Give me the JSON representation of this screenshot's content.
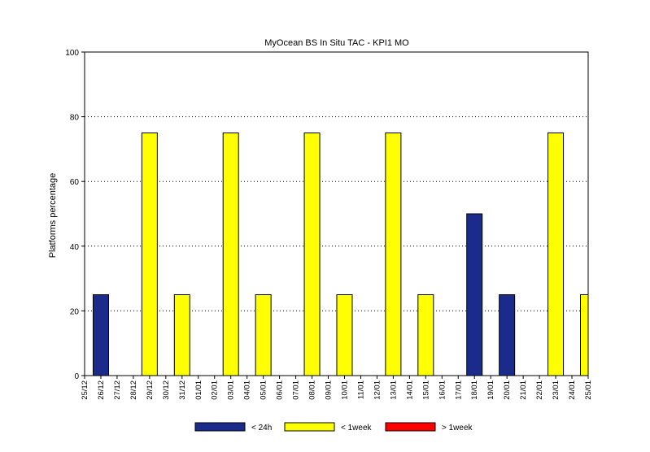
{
  "chart_data": {
    "type": "bar",
    "title": "MyOcean  BS In Situ TAC - KPI1  MO",
    "ylabel": "Platforms percentage",
    "xlabel": "",
    "ylim": [
      0,
      100
    ],
    "yticks": [
      0,
      20,
      40,
      60,
      80,
      100
    ],
    "grid": "horizontal-dotted",
    "legend_position": "bottom",
    "categories": [
      "25/12",
      "26/12",
      "27/12",
      "28/12",
      "29/12",
      "30/12",
      "31/12",
      "01/01",
      "02/01",
      "03/01",
      "04/01",
      "05/01",
      "06/01",
      "07/01",
      "08/01",
      "09/01",
      "10/01",
      "11/01",
      "12/01",
      "13/01",
      "14/01",
      "15/01",
      "16/01",
      "17/01",
      "18/01",
      "19/01",
      "20/01",
      "21/01",
      "22/01",
      "23/01",
      "24/01",
      "25/01"
    ],
    "series": [
      {
        "name": "< 24h",
        "color": "#1a2b8c",
        "values": [
          0,
          25,
          0,
          0,
          0,
          0,
          0,
          0,
          0,
          0,
          0,
          0,
          0,
          0,
          0,
          0,
          0,
          0,
          0,
          0,
          0,
          0,
          0,
          0,
          50,
          0,
          25,
          0,
          0,
          0,
          0,
          0
        ]
      },
      {
        "name": "< 1week",
        "color": "#ffff00",
        "values": [
          0,
          0,
          0,
          0,
          75,
          0,
          25,
          0,
          0,
          75,
          0,
          25,
          0,
          0,
          75,
          0,
          25,
          0,
          0,
          75,
          0,
          25,
          0,
          0,
          0,
          0,
          0,
          0,
          0,
          75,
          0,
          25
        ]
      },
      {
        "name": "> 1week",
        "color": "#ff0000",
        "values": [
          0,
          0,
          0,
          0,
          0,
          0,
          0,
          0,
          0,
          0,
          0,
          0,
          0,
          0,
          0,
          0,
          0,
          0,
          0,
          0,
          0,
          0,
          0,
          0,
          0,
          0,
          0,
          0,
          0,
          0,
          0,
          0
        ]
      }
    ]
  }
}
